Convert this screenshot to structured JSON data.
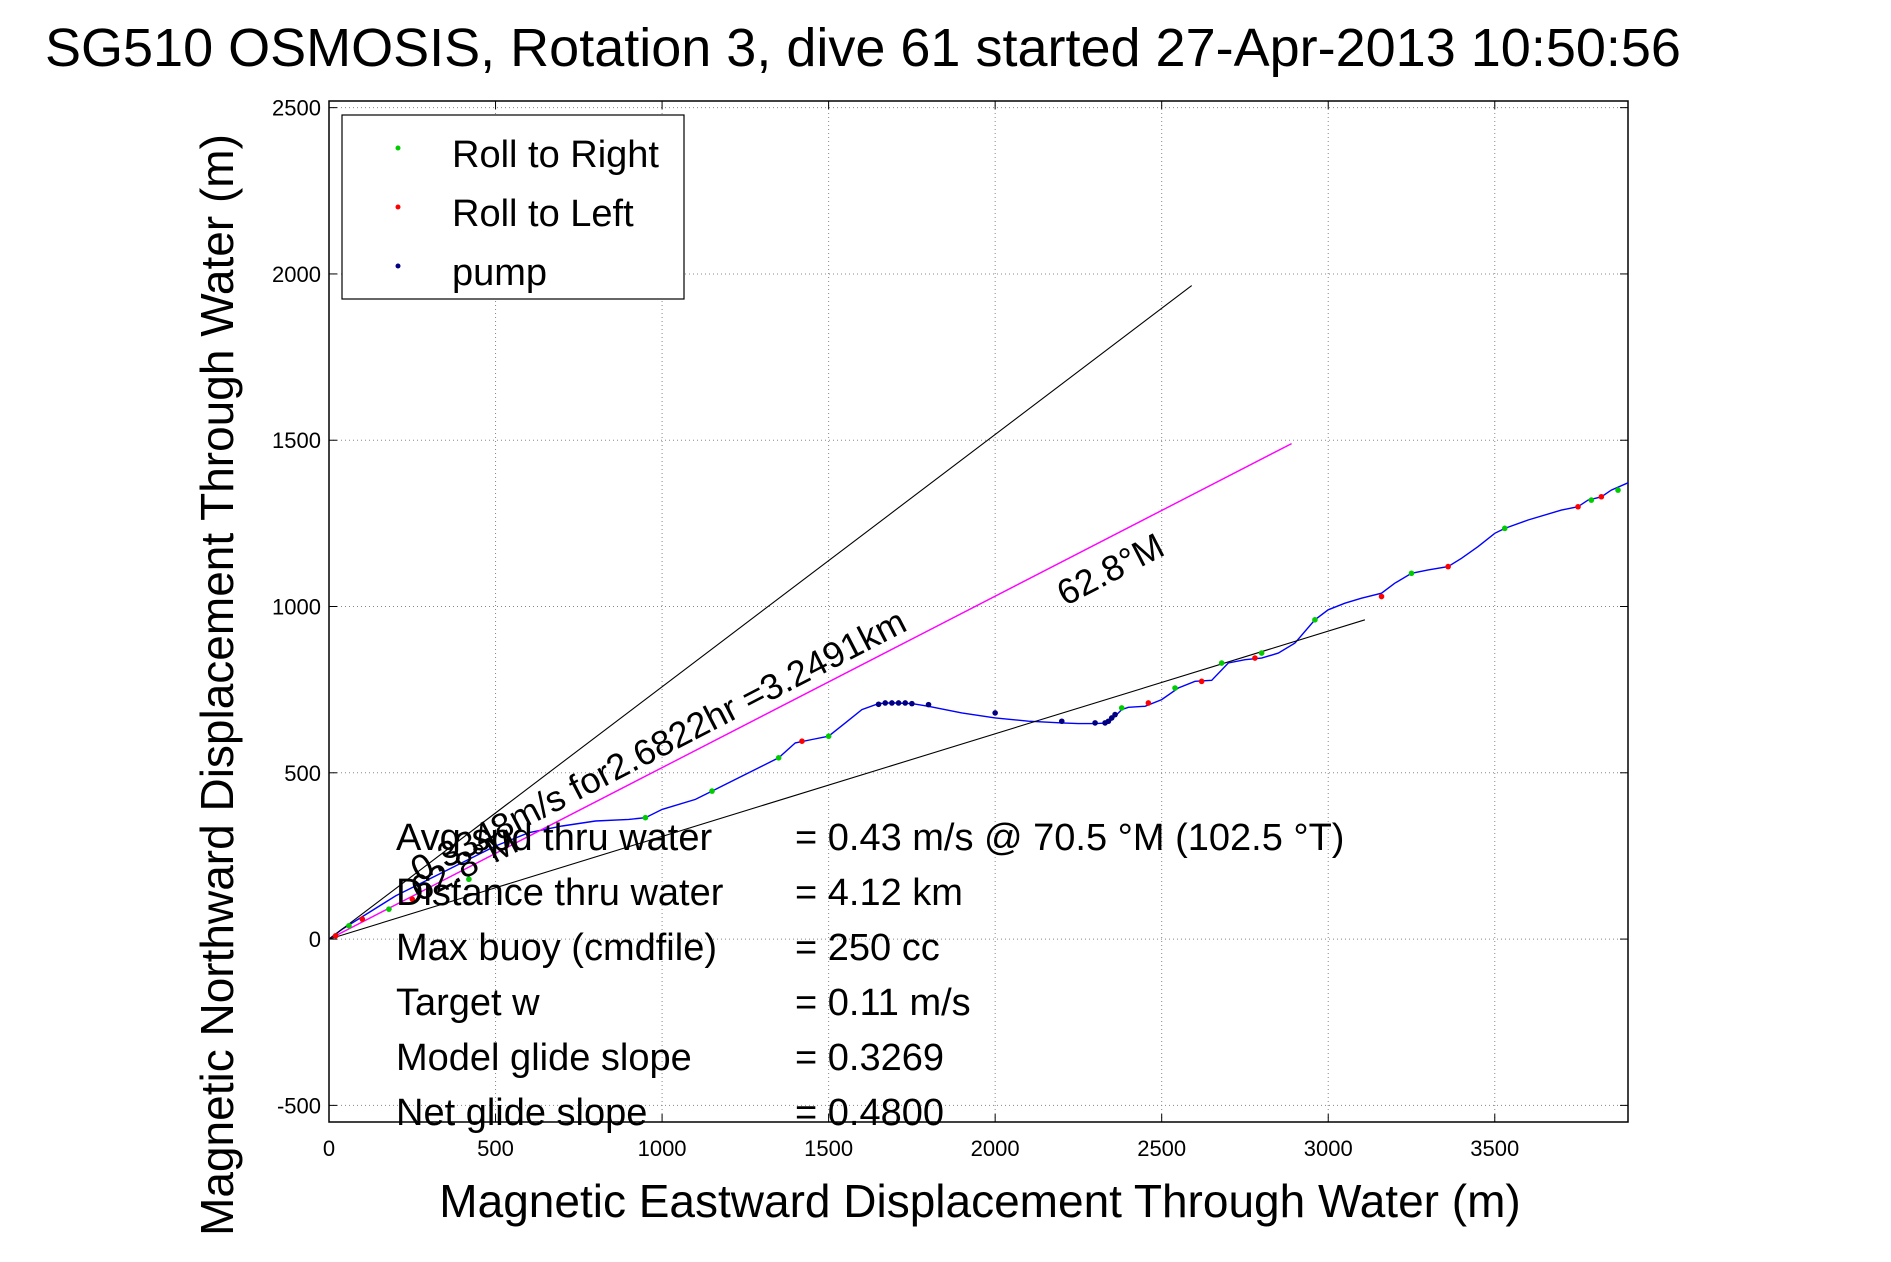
{
  "chart_data": {
    "type": "line",
    "title": "SG510 OSMOSIS, Rotation 3, dive 61 started 27-Apr-2013 10:50:56",
    "xlabel": "Magnetic Eastward Displacement Through Water (m)",
    "ylabel": "Magnetic Northward Displacement Through Water (m)",
    "xlim": [
      0,
      3900
    ],
    "ylim": [
      -550,
      2520
    ],
    "xticks": [
      0,
      500,
      1000,
      1500,
      2000,
      2500,
      3000,
      3500
    ],
    "yticks": [
      -500,
      0,
      500,
      1000,
      1500,
      2000,
      2500
    ],
    "grid": true,
    "legend": {
      "placement": "top-left",
      "entries": [
        {
          "label": "Roll to Right",
          "color": "#00cc00"
        },
        {
          "label": "Roll to Left",
          "color": "#ff0000"
        },
        {
          "label": "pump",
          "color": "#000080"
        }
      ]
    },
    "colors": {
      "track": "#0000ff",
      "current": "#ff00ff",
      "reference": "#000000",
      "grid": "#888888"
    },
    "series": [
      {
        "name": "",
        "x": [
          0,
          40,
          120,
          200,
          300,
          400,
          500,
          600,
          700,
          800,
          900,
          950,
          1000,
          1100,
          1150,
          1200,
          1300,
          1350,
          1400,
          1450,
          1500,
          1550,
          1600,
          1650,
          1680,
          1700,
          1750,
          1800,
          1900,
          2000,
          2100,
          2200,
          2250,
          2300,
          2340,
          2360,
          2380,
          2400,
          2450,
          2500,
          2550,
          2600,
          2650,
          2700,
          2750,
          2800,
          2850,
          2900,
          2960,
          3000,
          3050,
          3100,
          3160,
          3200,
          3250,
          3300,
          3360,
          3400,
          3450,
          3500,
          3530,
          3600,
          3700,
          3750,
          3780,
          3820,
          3850,
          3900
        ],
        "y": [
          0,
          30,
          80,
          130,
          180,
          230,
          280,
          320,
          340,
          355,
          360,
          365,
          390,
          420,
          445,
          470,
          520,
          545,
          590,
          600,
          610,
          650,
          690,
          708,
          710,
          710,
          708,
          700,
          680,
          665,
          655,
          650,
          648,
          648,
          650,
          670,
          690,
          697,
          700,
          720,
          755,
          775,
          778,
          830,
          840,
          845,
          860,
          890,
          960,
          990,
          1010,
          1025,
          1040,
          1070,
          1100,
          1110,
          1120,
          1145,
          1180,
          1220,
          1235,
          1260,
          1290,
          1300,
          1320,
          1330,
          1350,
          1372
        ]
      },
      {
        "name": "",
        "x": [
          0,
          2890
        ],
        "y": [
          0,
          1490
        ]
      },
      {
        "name": "",
        "x": [
          0,
          2590
        ],
        "y": [
          0,
          1965
        ]
      },
      {
        "name": "",
        "x": [
          0,
          3110
        ],
        "y": [
          0,
          960
        ]
      }
    ],
    "markers": {
      "roll_right": {
        "x": [
          60,
          180,
          300,
          420,
          950,
          1150,
          1350,
          1500,
          2380,
          2540,
          2680,
          2800,
          2960,
          3250,
          3530,
          3790,
          3870
        ],
        "y": [
          40,
          90,
          140,
          180,
          365,
          445,
          545,
          610,
          695,
          755,
          830,
          860,
          960,
          1100,
          1235,
          1320,
          1350
        ]
      },
      "roll_left": {
        "x": [
          20,
          100,
          250,
          1420,
          2460,
          2620,
          2780,
          3160,
          3360,
          3750,
          3820
        ],
        "y": [
          10,
          60,
          120,
          595,
          710,
          775,
          845,
          1030,
          1120,
          1300,
          1330
        ]
      },
      "pump": {
        "x": [
          1650,
          1670,
          1690,
          1710,
          1730,
          1750,
          1800,
          2000,
          2200,
          2300,
          2330,
          2340,
          2350,
          2360
        ],
        "y": [
          706,
          710,
          710,
          710,
          710,
          708,
          705,
          680,
          655,
          650,
          650,
          655,
          665,
          675
        ]
      }
    },
    "annotations": [
      {
        "text": "0.3348m/s for2.6822hr =3.2491km",
        "x": 270,
        "y": 170,
        "angle": -27.3
      },
      {
        "text": "62.8°M",
        "x": 2210,
        "y": 1000,
        "angle": -27.3
      },
      {
        "text": "62.8°M",
        "x": 270,
        "y": 110,
        "angle": -27.3
      }
    ],
    "info": [
      {
        "label": "Avg spd thru water",
        "value": "=  0.43 m/s @  70.5 °M (102.5 °T)"
      },
      {
        "label": "Distance thru water",
        "value": "=  4.12 km"
      },
      {
        "label": "Max buoy (cmdfile)",
        "value": "= 250 cc"
      },
      {
        "label": "Target w",
        "value": "= 0.11 m/s"
      },
      {
        "label": "Model glide slope",
        "value": "= 0.3269"
      },
      {
        "label": "Net glide slope",
        "value": "= 0.4800"
      }
    ]
  }
}
